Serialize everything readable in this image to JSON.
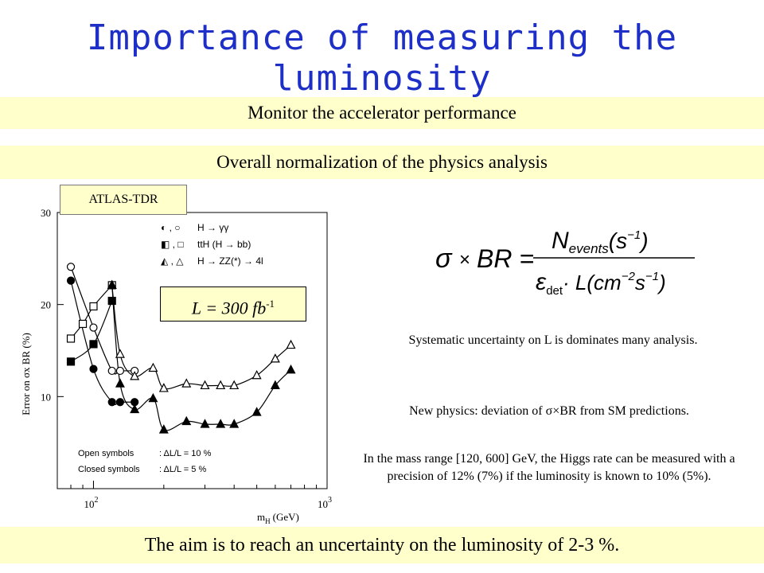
{
  "title": "Importance of measuring the luminosity",
  "banners": {
    "b1": "Monitor the accelerator performance",
    "b2": "Overall normalization of the physics analysis",
    "b3": "The aim is to reach an uncertainty on the luminosity of 2-3 %."
  },
  "tag": "ATLAS-TDR",
  "lumi_box": {
    "main": "L = 300 fb",
    "sup": "-1"
  },
  "formula": {
    "lhs_sigma": "σ",
    "lhs_times": "×",
    "lhs_br": "BR =",
    "num_n": "N",
    "num_sub": "events",
    "num_tail": "(s",
    "num_exp": "−1",
    "num_close": ")",
    "den_eps": "ε",
    "den_sub": "det",
    "den_mid": "· L(cm",
    "den_exp": "−2",
    "den_s": "s",
    "den_exp2": "−1",
    "den_close": ")"
  },
  "texts": {
    "t1": "Systematic uncertainty on L is dominates many analysis.",
    "t2": "New physics: deviation of σ×BR from SM predictions.",
    "t3": "In the mass range [120, 600] GeV, the Higgs rate can be measured with a precision of 12% (7%) if the luminosity is known to 10% (5%)."
  },
  "chart_data": {
    "type": "scatter",
    "xscale": "log",
    "xlim": [
      70,
      1000
    ],
    "ylim": [
      0,
      30
    ],
    "ylabel": "Error on σx BR (%)",
    "xlabel_main": "m",
    "xlabel_sub": "H",
    "xlabel_unit": "(GeV)",
    "xticks": [
      {
        "base": "10",
        "exp": "2",
        "value": 100
      },
      {
        "base": "10",
        "exp": "3",
        "value": 1000
      }
    ],
    "yticks": [
      10,
      20,
      30
    ],
    "legend_top": [
      {
        "symbols": "◐ , ○",
        "process": "H → γγ"
      },
      {
        "symbols": "◧ , □",
        "process": "ttH (H → bb)"
      },
      {
        "symbols": "◭ , △",
        "process": "H → ZZ(*) → 4l"
      }
    ],
    "legend_bottom": [
      {
        "label": "Open symbols",
        "value": ": ΔL/L = 10 %"
      },
      {
        "label": "Closed symbols",
        "value": ": ΔL/L = 5 %"
      }
    ],
    "series": [
      {
        "channel": "gg",
        "style": "open",
        "marker": "circle",
        "x": [
          80,
          100,
          120,
          130,
          150
        ],
        "y": [
          24.1,
          17.5,
          12.8,
          12.8,
          12.8
        ]
      },
      {
        "channel": "gg",
        "style": "closed",
        "marker": "circle",
        "x": [
          80,
          100,
          120,
          130,
          150
        ],
        "y": [
          22.6,
          13.0,
          9.4,
          9.4,
          9.4
        ]
      },
      {
        "channel": "ttH",
        "style": "open",
        "marker": "square",
        "x": [
          80,
          90,
          100,
          120
        ],
        "y": [
          16.3,
          17.9,
          19.8,
          22.1
        ]
      },
      {
        "channel": "ttH",
        "style": "closed",
        "marker": "square",
        "x": [
          80,
          100,
          120
        ],
        "y": [
          13.8,
          15.7,
          20.4
        ]
      },
      {
        "channel": "ZZ",
        "style": "open",
        "marker": "triangle",
        "x": [
          120,
          130,
          150,
          180,
          200,
          250,
          300,
          350,
          400,
          500,
          600,
          700
        ],
        "y": [
          22.1,
          14.6,
          12.2,
          13.1,
          10.9,
          11.4,
          11.2,
          11.2,
          11.2,
          12.3,
          14.1,
          15.6
        ]
      },
      {
        "channel": "ZZ",
        "style": "closed",
        "marker": "triangle",
        "x": [
          120,
          130,
          150,
          180,
          200,
          250,
          300,
          350,
          400,
          500,
          600,
          700
        ],
        "y": [
          22.1,
          11.4,
          8.6,
          9.8,
          6.4,
          7.3,
          7.0,
          7.0,
          7.0,
          8.3,
          11.2,
          12.9
        ]
      }
    ]
  }
}
